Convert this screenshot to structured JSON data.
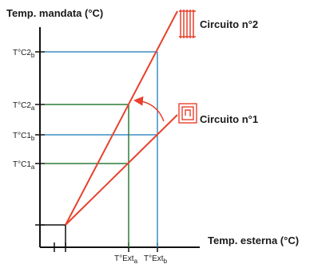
{
  "y_axis_title": "Temp. mandata (°C)",
  "x_axis_title": "Temp. esterna (°C)",
  "circuit_2": {
    "label": "Circuito n°2",
    "icon": "radiator-icon",
    "color": "#e8412c"
  },
  "circuit_1": {
    "label": "Circuito n°1",
    "icon": "floor-heating-coil-icon",
    "color": "#e8412c"
  },
  "y_ticks": {
    "tc2b": {
      "base": "T°C2",
      "sub": "b"
    },
    "tc2a": {
      "base": "T°C2",
      "sub": "a"
    },
    "tc1b": {
      "base": "T°C1",
      "sub": "b"
    },
    "tc1a": {
      "base": "T°C1",
      "sub": "a"
    }
  },
  "x_ticks": {
    "exta": {
      "base": "T°Ext",
      "sub": "a"
    },
    "extb": {
      "base": "T°Ext",
      "sub": "b"
    }
  },
  "colors": {
    "blue_guide": "#3b8fc4",
    "green_guide": "#2e7d3a",
    "axis": "#111111",
    "curve": "#e8412c"
  }
}
